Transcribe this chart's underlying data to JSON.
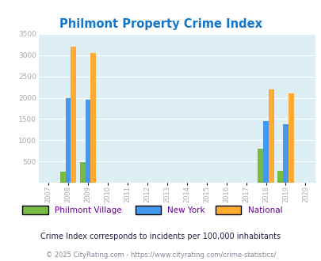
{
  "title": "Philmont Property Crime Index",
  "years": [
    2007,
    2008,
    2009,
    2010,
    2011,
    2012,
    2013,
    2014,
    2015,
    2016,
    2017,
    2018,
    2019,
    2020
  ],
  "philmont": [
    0,
    255,
    475,
    0,
    0,
    0,
    0,
    0,
    0,
    0,
    0,
    800,
    275,
    0
  ],
  "new_york": [
    0,
    2000,
    1950,
    0,
    0,
    0,
    0,
    0,
    0,
    0,
    0,
    1450,
    1375,
    0
  ],
  "national": [
    0,
    3200,
    3050,
    0,
    0,
    0,
    0,
    0,
    0,
    0,
    0,
    2200,
    2100,
    0
  ],
  "philmont_color": "#77bb44",
  "newyork_color": "#4499ee",
  "national_color": "#ffaa33",
  "bg_color": "#ddeef5",
  "ylim": [
    0,
    3500
  ],
  "yticks": [
    0,
    500,
    1000,
    1500,
    2000,
    2500,
    3000,
    3500
  ],
  "legend_labels": [
    "Philmont Village",
    "New York",
    "National"
  ],
  "footnote1": "Crime Index corresponds to incidents per 100,000 inhabitants",
  "footnote2": "© 2025 CityRating.com - https://www.cityrating.com/crime-statistics/",
  "title_color": "#1177cc",
  "legend_text_color": "#660099",
  "footnote1_color": "#222244",
  "footnote2_color": "#888899",
  "bar_width": 0.27,
  "grid_color": "#ccddee",
  "tick_color": "#aaaaaa"
}
